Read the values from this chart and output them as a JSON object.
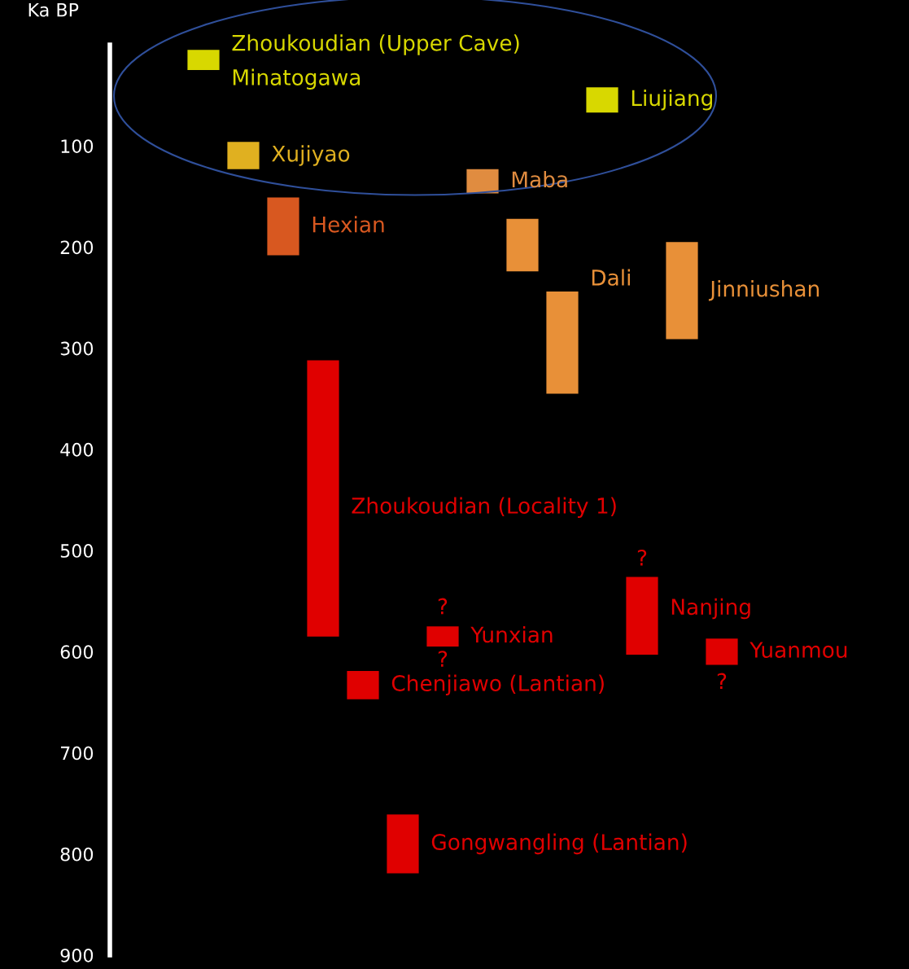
{
  "chart_data": {
    "type": "bar",
    "ylabel": "Ka BP",
    "categories": [
      null,
      null,
      null,
      null,
      null,
      null,
      null,
      null,
      null,
      null,
      null,
      null,
      null,
      null
    ],
    "base": [
      5,
      96,
      151,
      312,
      619,
      761,
      575,
      123,
      172,
      244,
      42,
      526,
      195,
      587
    ],
    "values": [
      20,
      27,
      57,
      273,
      28,
      58,
      20,
      24,
      52,
      101,
      25,
      77,
      96,
      26
    ],
    "colors": [
      "#d8d800",
      "#e0b020",
      "#d85820",
      "#e00000",
      "#e00000",
      "#e00000",
      "#e00000",
      "#e08c40",
      "#e89038",
      "#e89038",
      "#d8d800",
      "#e00000",
      "#e89038",
      "#e00000"
    ],
    "ylim": [
      900,
      0
    ],
    "yticks": [
      100,
      200,
      300,
      400,
      500,
      600,
      700,
      800,
      900
    ],
    "grid": false,
    "legend": false,
    "annotations": [
      "Zhoukoudian (Upper Cave)",
      "Minatogawa",
      "Xujiyao",
      "Hexian",
      "Zhoukoudian (Locality 1)",
      "Chenjiawo (Lantian)",
      "Gongwangling (Lantian)",
      "Yunxian",
      "Maba",
      "Dali",
      "Liujiang",
      "Nanjing",
      "Jinniushan",
      "Yuanmou",
      "?",
      "?",
      "?",
      "?"
    ]
  }
}
